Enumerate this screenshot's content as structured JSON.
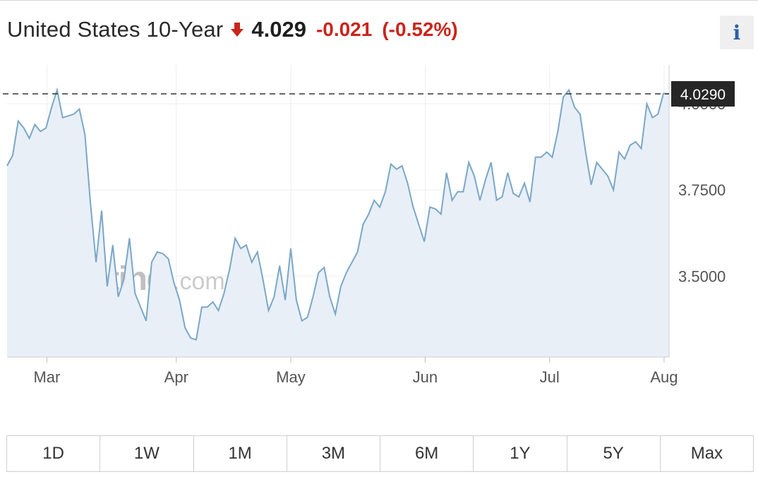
{
  "header": {
    "title": "United States 10-Year",
    "last": "4.029",
    "change": "-0.021",
    "change_pct": "(-0.52%)",
    "direction": "down",
    "down_color": "#c8261c"
  },
  "info_button": {
    "label": "i",
    "color": "#2d5ea8",
    "icon": "info-icon"
  },
  "watermark": {
    "brand": "Investing",
    "domain": ".com"
  },
  "ranges": [
    "1D",
    "1W",
    "1M",
    "3M",
    "6M",
    "1Y",
    "5Y",
    "Max"
  ],
  "chart_data": {
    "type": "area",
    "x_tick_labels": [
      "Mar",
      "Apr",
      "May",
      "Jun",
      "Jul",
      "Aug"
    ],
    "y_tick_labels": [
      "4.0000",
      "3.7500",
      "3.5000"
    ],
    "y_ticks": [
      4.0,
      3.75,
      3.5
    ],
    "ylim": [
      3.265,
      4.113
    ],
    "last_price_label": "4.0290",
    "last_price": 4.029,
    "line_color": "#7aa7c7",
    "fill_color": "#e8eff7",
    "grid": true,
    "x_index_range": [
      0,
      133
    ],
    "x_tick_positions": [
      8,
      34,
      57,
      84,
      109,
      132
    ],
    "series": [
      {
        "values": [
          3.82,
          3.85,
          3.95,
          3.93,
          3.9,
          3.94,
          3.92,
          3.93,
          3.99,
          4.04,
          3.96,
          3.965,
          3.97,
          3.985,
          3.91,
          3.71,
          3.54,
          3.69,
          3.47,
          3.59,
          3.44,
          3.49,
          3.61,
          3.45,
          3.41,
          3.37,
          3.54,
          3.57,
          3.565,
          3.55,
          3.48,
          3.43,
          3.35,
          3.32,
          3.315,
          3.41,
          3.41,
          3.425,
          3.4,
          3.45,
          3.52,
          3.61,
          3.58,
          3.59,
          3.54,
          3.57,
          3.49,
          3.4,
          3.44,
          3.53,
          3.43,
          3.58,
          3.43,
          3.37,
          3.38,
          3.44,
          3.51,
          3.525,
          3.44,
          3.39,
          3.47,
          3.51,
          3.54,
          3.57,
          3.65,
          3.68,
          3.72,
          3.7,
          3.745,
          3.825,
          3.81,
          3.82,
          3.77,
          3.7,
          3.65,
          3.6,
          3.7,
          3.695,
          3.68,
          3.8,
          3.72,
          3.745,
          3.745,
          3.83,
          3.79,
          3.72,
          3.78,
          3.83,
          3.72,
          3.73,
          3.8,
          3.74,
          3.73,
          3.77,
          3.715,
          3.845,
          3.845,
          3.86,
          3.845,
          3.92,
          4.02,
          4.04,
          3.99,
          3.97,
          3.86,
          3.765,
          3.83,
          3.81,
          3.79,
          3.75,
          3.86,
          3.84,
          3.88,
          3.89,
          3.87,
          4.0,
          3.96,
          3.97,
          4.03,
          4.029
        ]
      }
    ]
  }
}
